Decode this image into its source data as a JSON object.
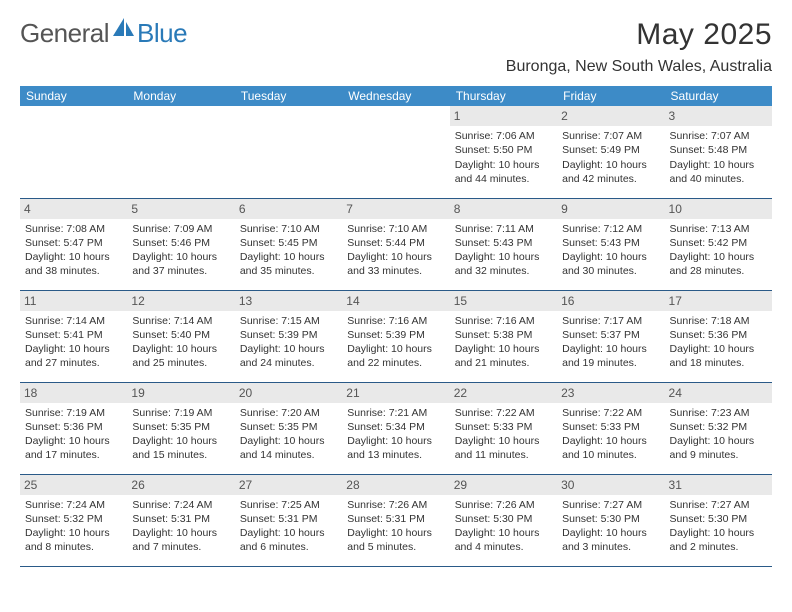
{
  "logo": {
    "general": "General",
    "blue": "Blue"
  },
  "title": "May 2025",
  "location": "Buronga, New South Wales, Australia",
  "colors": {
    "header_bg": "#3d8bc7",
    "header_text": "#ffffff",
    "daynum_bg": "#e9e9e9",
    "week_border": "#2a5a88",
    "body_text": "#333333",
    "logo_blue": "#2a7ab8",
    "logo_gray": "#555555",
    "page_bg": "#ffffff"
  },
  "weekdays": [
    "Sunday",
    "Monday",
    "Tuesday",
    "Wednesday",
    "Thursday",
    "Friday",
    "Saturday"
  ],
  "weeks": [
    [
      null,
      null,
      null,
      null,
      {
        "n": "1",
        "sr": "Sunrise: 7:06 AM",
        "ss": "Sunset: 5:50 PM",
        "d1": "Daylight: 10 hours",
        "d2": "and 44 minutes."
      },
      {
        "n": "2",
        "sr": "Sunrise: 7:07 AM",
        "ss": "Sunset: 5:49 PM",
        "d1": "Daylight: 10 hours",
        "d2": "and 42 minutes."
      },
      {
        "n": "3",
        "sr": "Sunrise: 7:07 AM",
        "ss": "Sunset: 5:48 PM",
        "d1": "Daylight: 10 hours",
        "d2": "and 40 minutes."
      }
    ],
    [
      {
        "n": "4",
        "sr": "Sunrise: 7:08 AM",
        "ss": "Sunset: 5:47 PM",
        "d1": "Daylight: 10 hours",
        "d2": "and 38 minutes."
      },
      {
        "n": "5",
        "sr": "Sunrise: 7:09 AM",
        "ss": "Sunset: 5:46 PM",
        "d1": "Daylight: 10 hours",
        "d2": "and 37 minutes."
      },
      {
        "n": "6",
        "sr": "Sunrise: 7:10 AM",
        "ss": "Sunset: 5:45 PM",
        "d1": "Daylight: 10 hours",
        "d2": "and 35 minutes."
      },
      {
        "n": "7",
        "sr": "Sunrise: 7:10 AM",
        "ss": "Sunset: 5:44 PM",
        "d1": "Daylight: 10 hours",
        "d2": "and 33 minutes."
      },
      {
        "n": "8",
        "sr": "Sunrise: 7:11 AM",
        "ss": "Sunset: 5:43 PM",
        "d1": "Daylight: 10 hours",
        "d2": "and 32 minutes."
      },
      {
        "n": "9",
        "sr": "Sunrise: 7:12 AM",
        "ss": "Sunset: 5:43 PM",
        "d1": "Daylight: 10 hours",
        "d2": "and 30 minutes."
      },
      {
        "n": "10",
        "sr": "Sunrise: 7:13 AM",
        "ss": "Sunset: 5:42 PM",
        "d1": "Daylight: 10 hours",
        "d2": "and 28 minutes."
      }
    ],
    [
      {
        "n": "11",
        "sr": "Sunrise: 7:14 AM",
        "ss": "Sunset: 5:41 PM",
        "d1": "Daylight: 10 hours",
        "d2": "and 27 minutes."
      },
      {
        "n": "12",
        "sr": "Sunrise: 7:14 AM",
        "ss": "Sunset: 5:40 PM",
        "d1": "Daylight: 10 hours",
        "d2": "and 25 minutes."
      },
      {
        "n": "13",
        "sr": "Sunrise: 7:15 AM",
        "ss": "Sunset: 5:39 PM",
        "d1": "Daylight: 10 hours",
        "d2": "and 24 minutes."
      },
      {
        "n": "14",
        "sr": "Sunrise: 7:16 AM",
        "ss": "Sunset: 5:39 PM",
        "d1": "Daylight: 10 hours",
        "d2": "and 22 minutes."
      },
      {
        "n": "15",
        "sr": "Sunrise: 7:16 AM",
        "ss": "Sunset: 5:38 PM",
        "d1": "Daylight: 10 hours",
        "d2": "and 21 minutes."
      },
      {
        "n": "16",
        "sr": "Sunrise: 7:17 AM",
        "ss": "Sunset: 5:37 PM",
        "d1": "Daylight: 10 hours",
        "d2": "and 19 minutes."
      },
      {
        "n": "17",
        "sr": "Sunrise: 7:18 AM",
        "ss": "Sunset: 5:36 PM",
        "d1": "Daylight: 10 hours",
        "d2": "and 18 minutes."
      }
    ],
    [
      {
        "n": "18",
        "sr": "Sunrise: 7:19 AM",
        "ss": "Sunset: 5:36 PM",
        "d1": "Daylight: 10 hours",
        "d2": "and 17 minutes."
      },
      {
        "n": "19",
        "sr": "Sunrise: 7:19 AM",
        "ss": "Sunset: 5:35 PM",
        "d1": "Daylight: 10 hours",
        "d2": "and 15 minutes."
      },
      {
        "n": "20",
        "sr": "Sunrise: 7:20 AM",
        "ss": "Sunset: 5:35 PM",
        "d1": "Daylight: 10 hours",
        "d2": "and 14 minutes."
      },
      {
        "n": "21",
        "sr": "Sunrise: 7:21 AM",
        "ss": "Sunset: 5:34 PM",
        "d1": "Daylight: 10 hours",
        "d2": "and 13 minutes."
      },
      {
        "n": "22",
        "sr": "Sunrise: 7:22 AM",
        "ss": "Sunset: 5:33 PM",
        "d1": "Daylight: 10 hours",
        "d2": "and 11 minutes."
      },
      {
        "n": "23",
        "sr": "Sunrise: 7:22 AM",
        "ss": "Sunset: 5:33 PM",
        "d1": "Daylight: 10 hours",
        "d2": "and 10 minutes."
      },
      {
        "n": "24",
        "sr": "Sunrise: 7:23 AM",
        "ss": "Sunset: 5:32 PM",
        "d1": "Daylight: 10 hours",
        "d2": "and 9 minutes."
      }
    ],
    [
      {
        "n": "25",
        "sr": "Sunrise: 7:24 AM",
        "ss": "Sunset: 5:32 PM",
        "d1": "Daylight: 10 hours",
        "d2": "and 8 minutes."
      },
      {
        "n": "26",
        "sr": "Sunrise: 7:24 AM",
        "ss": "Sunset: 5:31 PM",
        "d1": "Daylight: 10 hours",
        "d2": "and 7 minutes."
      },
      {
        "n": "27",
        "sr": "Sunrise: 7:25 AM",
        "ss": "Sunset: 5:31 PM",
        "d1": "Daylight: 10 hours",
        "d2": "and 6 minutes."
      },
      {
        "n": "28",
        "sr": "Sunrise: 7:26 AM",
        "ss": "Sunset: 5:31 PM",
        "d1": "Daylight: 10 hours",
        "d2": "and 5 minutes."
      },
      {
        "n": "29",
        "sr": "Sunrise: 7:26 AM",
        "ss": "Sunset: 5:30 PM",
        "d1": "Daylight: 10 hours",
        "d2": "and 4 minutes."
      },
      {
        "n": "30",
        "sr": "Sunrise: 7:27 AM",
        "ss": "Sunset: 5:30 PM",
        "d1": "Daylight: 10 hours",
        "d2": "and 3 minutes."
      },
      {
        "n": "31",
        "sr": "Sunrise: 7:27 AM",
        "ss": "Sunset: 5:30 PM",
        "d1": "Daylight: 10 hours",
        "d2": "and 2 minutes."
      }
    ]
  ]
}
